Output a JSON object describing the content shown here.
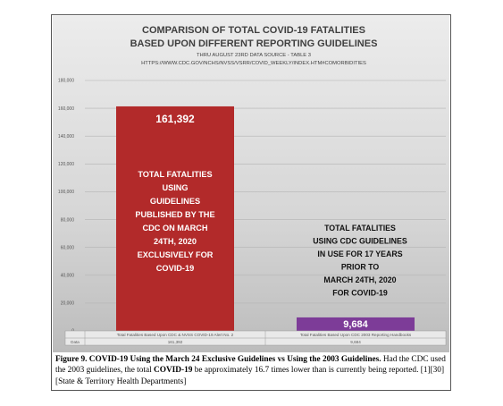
{
  "chart_data": {
    "type": "bar",
    "title_line1": "COMPARISON OF TOTAL COVID-19 FATALITIES",
    "title_line2": "BASED UPON DIFFERENT REPORTING GUIDELINES",
    "subtitle_line1": "THRU AUGUST 23RD DATA SOURCE - TABLE 3",
    "subtitle_line2": "HTTPS://WWW.CDC.GOV/NCHS/NVSS/VSRR/COVID_WEEKLY/INDEX.HTM#COMORBIDITIES",
    "categories": [
      "Total Fatalities Based Upon CDC & NVSS COVID-19 Alert No. 2",
      "Total Fatalities Based Upon CDC 2003 Reporting Handbooks"
    ],
    "values": [
      161392,
      9684
    ],
    "value_labels": [
      "161,392",
      "9,684"
    ],
    "bar_colors": [
      "#b22a2a",
      "#7d3c98"
    ],
    "ylim": [
      0,
      180000
    ],
    "yticks": [
      0,
      20000,
      40000,
      60000,
      80000,
      100000,
      120000,
      140000,
      160000,
      180000
    ],
    "ytick_labels": [
      "0",
      "20,000",
      "40,000",
      "60,000",
      "80,000",
      "100,000",
      "120,000",
      "140,000",
      "160,000",
      "180,000"
    ],
    "grid": true,
    "data_table": {
      "row_label": "Data",
      "values": [
        "161,392",
        "9,684"
      ]
    },
    "annotations": {
      "bar1": [
        "TOTAL FATALITIES",
        "USING",
        "GUIDELINES",
        "PUBLISHED BY THE",
        "CDC ON MARCH",
        "24TH, 2020",
        "EXCLUSIVELY FOR",
        "COVID-19"
      ],
      "bar2": [
        "TOTAL FATALITIES",
        "USING CDC GUIDELINES",
        "IN USE FOR 17 YEARS",
        "PRIOR TO",
        "MARCH 24TH, 2020",
        "FOR COVID-19"
      ]
    }
  },
  "caption": {
    "label": "Figure 9. COVID-19 Using the March 24 Exclusive Guidelines vs Using the 2003 Guidelines.",
    "text1": " Had the CDC used the 2003 guidelines, the total ",
    "bold2": "COVID-19",
    "text2": " be approximately 16.7 times lower than is currently being reported. [1][30][State & Territory Health Departments]"
  }
}
